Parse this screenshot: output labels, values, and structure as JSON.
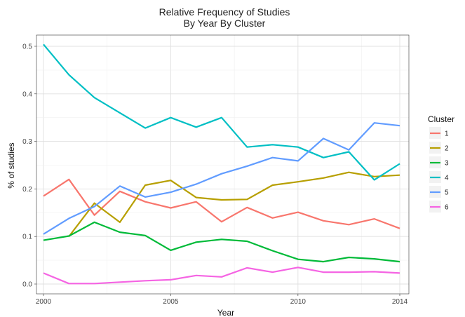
{
  "chart_data": {
    "type": "line",
    "title": "Relative Frequency of Studies",
    "subtitle": "By Year By Cluster",
    "xlabel": "Year",
    "ylabel": "% of studies",
    "xlim": [
      2000,
      2014
    ],
    "ylim": [
      0,
      0.51
    ],
    "xticks": [
      "2000",
      "2005",
      "2010",
      "2014"
    ],
    "yticks": [
      "0.0",
      "0.1",
      "0.2",
      "0.3",
      "0.4",
      "0.5"
    ],
    "grid": true,
    "legend": {
      "title": "Cluster",
      "placement": "right"
    },
    "x": [
      2000,
      2001,
      2002,
      2003,
      2004,
      2005,
      2006,
      2007,
      2008,
      2009,
      2010,
      2011,
      2012,
      2013,
      2014
    ],
    "series": [
      {
        "name": "1",
        "color": "#F8766D",
        "values": [
          0.185,
          0.22,
          0.145,
          0.195,
          0.173,
          0.16,
          0.173,
          0.131,
          0.161,
          0.139,
          0.151,
          0.133,
          0.125,
          0.137,
          0.117
        ]
      },
      {
        "name": "2",
        "color": "#B79F00",
        "values": [
          null,
          0.1,
          0.17,
          0.13,
          0.208,
          0.218,
          0.182,
          0.177,
          0.178,
          0.208,
          0.215,
          0.223,
          0.235,
          0.226,
          0.229
        ]
      },
      {
        "name": "3",
        "color": "#00BA38",
        "values": [
          0.092,
          0.101,
          0.13,
          0.109,
          0.102,
          0.071,
          0.088,
          0.094,
          0.09,
          0.07,
          0.052,
          0.047,
          0.056,
          0.053,
          0.047
        ]
      },
      {
        "name": "4",
        "color": "#00BFC4",
        "values": [
          0.504,
          0.44,
          0.392,
          0.36,
          0.328,
          0.35,
          0.33,
          0.35,
          0.288,
          0.293,
          0.288,
          0.266,
          0.278,
          0.219,
          0.253
        ]
      },
      {
        "name": "5",
        "color": "#619CFF",
        "values": [
          0.105,
          0.138,
          0.163,
          0.206,
          0.183,
          0.193,
          0.21,
          0.232,
          0.248,
          0.266,
          0.259,
          0.306,
          0.282,
          0.339,
          0.333
        ]
      },
      {
        "name": "6",
        "color": "#F564E3",
        "values": [
          0.023,
          0.001,
          0.001,
          0.004,
          0.007,
          0.009,
          0.018,
          0.015,
          0.034,
          0.025,
          0.035,
          0.025,
          0.025,
          0.026,
          0.023
        ]
      }
    ]
  }
}
